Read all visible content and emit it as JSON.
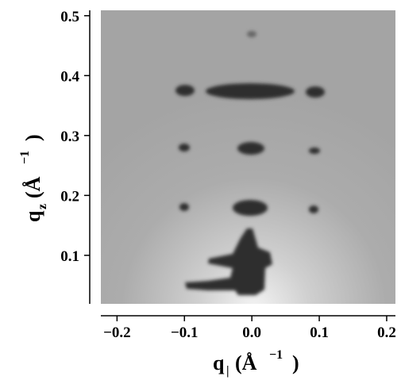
{
  "chart_data": {
    "type": "image",
    "xlabel": {
      "symbol": "q",
      "subscript": "|",
      "unit": "(Å",
      "exponent": "−1",
      "close": ")"
    },
    "ylabel": {
      "symbol": "q",
      "subscript": "z",
      "unit": "(Å",
      "exponent": "−1",
      "close": ")"
    },
    "xlim": [
      -0.224,
      0.213
    ],
    "ylim": [
      0.019,
      0.509
    ],
    "xticks": [
      {
        "value": -0.2,
        "label": "−0.2"
      },
      {
        "value": -0.1,
        "label": "−0.1"
      },
      {
        "value": 0,
        "label": "0.0"
      },
      0.1,
      0.2
    ],
    "yticks": [
      0.1,
      0.2,
      0.3,
      0.4,
      0.5
    ]
  }
}
